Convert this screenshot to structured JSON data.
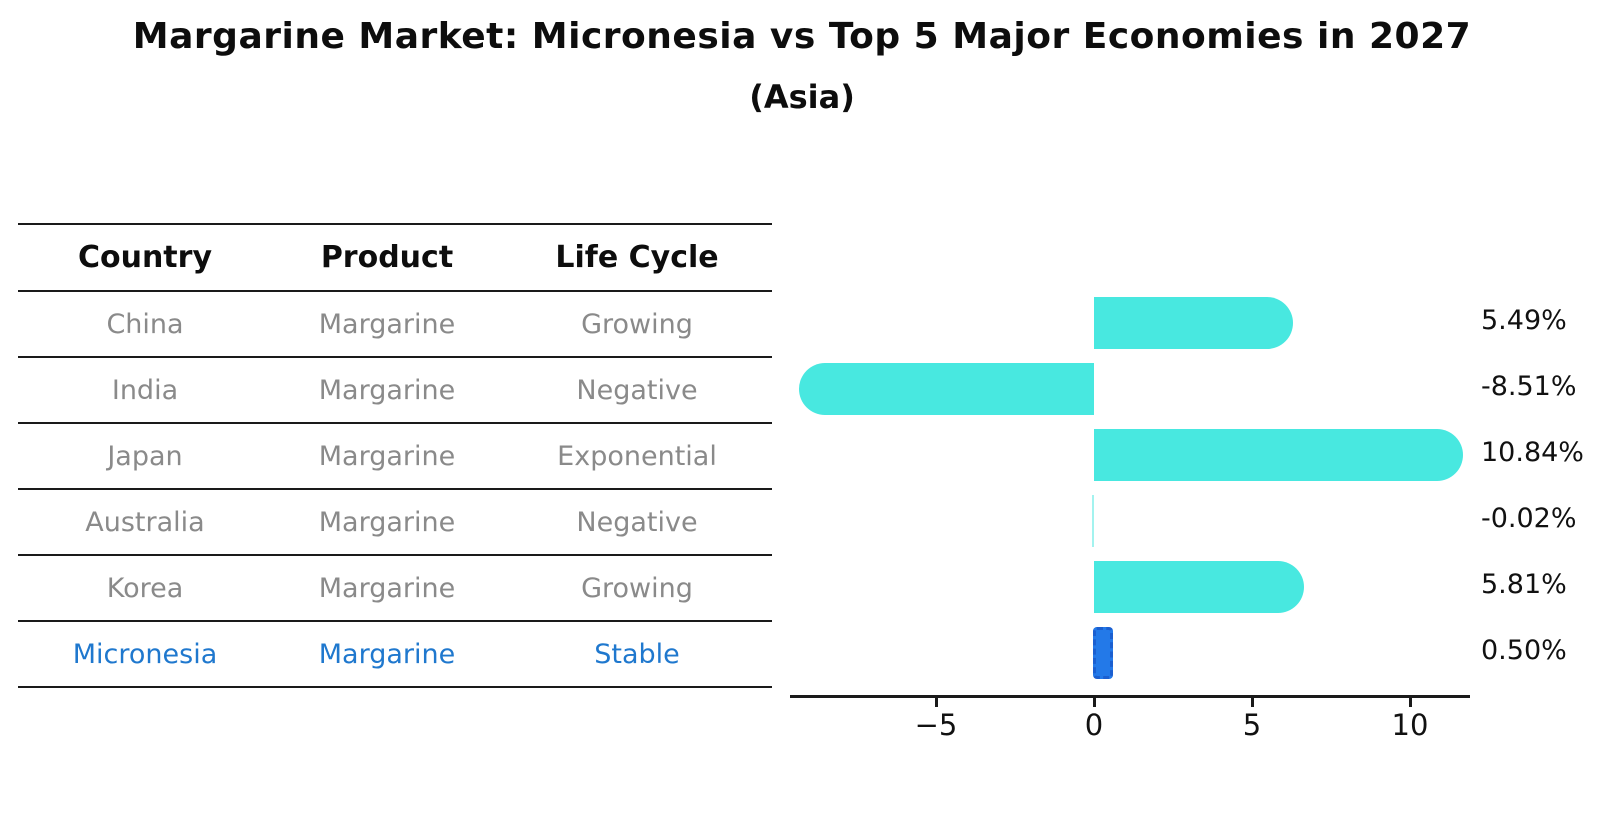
{
  "title": "Margarine Market: Micronesia vs Top 5 Major Economies in 2027",
  "subtitle": "(Asia)",
  "table": {
    "headers": [
      "Country",
      "Product",
      "Life Cycle"
    ],
    "rows": [
      {
        "country": "China",
        "product": "Margarine",
        "life_cycle": "Growing",
        "highlight": false
      },
      {
        "country": "India",
        "product": "Margarine",
        "life_cycle": "Negative",
        "highlight": false
      },
      {
        "country": "Japan",
        "product": "Margarine",
        "life_cycle": "Exponential",
        "highlight": false
      },
      {
        "country": "Australia",
        "product": "Margarine",
        "life_cycle": "Negative",
        "highlight": false
      },
      {
        "country": "Korea",
        "product": "Margarine",
        "life_cycle": "Growing",
        "highlight": false
      },
      {
        "country": "Micronesia",
        "product": "Margarine",
        "life_cycle": "Stable",
        "highlight": true
      }
    ]
  },
  "chart_data": {
    "type": "bar",
    "orientation": "horizontal",
    "title": "Margarine Market: Micronesia vs Top 5 Major Economies in 2027",
    "subtitle": "(Asia)",
    "categories": [
      "China",
      "India",
      "Japan",
      "Australia",
      "Korea",
      "Micronesia"
    ],
    "values": [
      5.49,
      -8.51,
      10.84,
      -0.02,
      5.81,
      0.5
    ],
    "value_labels": [
      "5.49%",
      "-8.51%",
      "10.84%",
      "-0.02%",
      "5.81%",
      "0.50%"
    ],
    "highlight_index": 5,
    "xlim": [
      -9.6,
      11.9
    ],
    "xticks": [
      -5,
      0,
      5,
      10
    ],
    "xtick_labels": [
      "−5",
      "0",
      "5",
      "10"
    ],
    "grid": false,
    "legend": "none",
    "bar_color": "#48e8e0",
    "highlight_bar_color": "#2379e8",
    "highlight_bar_edge_color": "#1b5fd0"
  },
  "colors": {
    "title_text": "#0d0d0d",
    "table_header_text": "#0d0d0d",
    "table_body_text": "#8a8a8a",
    "highlight_text": "#1f78ce",
    "axis": "#1a1a1a",
    "value_label_text": "#111111"
  }
}
